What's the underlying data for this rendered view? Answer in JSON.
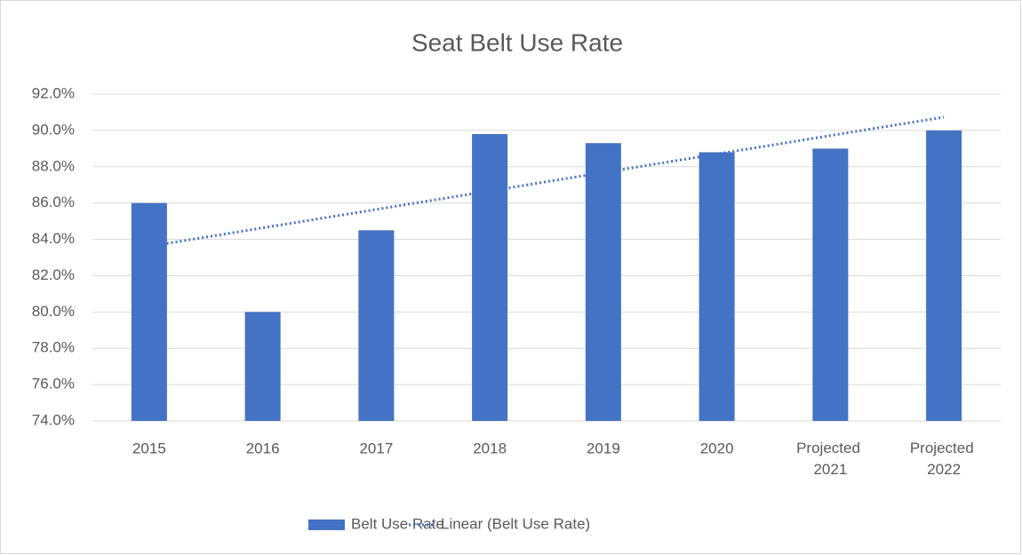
{
  "chart_data": {
    "type": "bar",
    "title": "Seat Belt Use Rate",
    "categories": [
      "2015",
      "2016",
      "2017",
      "2018",
      "2019",
      "2020",
      "Projected 2021",
      "Projected 2022"
    ],
    "series": [
      {
        "name": "Belt Use Rate",
        "color": "#4472c4",
        "values": [
          86.0,
          80.0,
          84.5,
          89.8,
          89.3,
          88.8,
          89.0,
          90.0
        ]
      }
    ],
    "trendline": {
      "name": "Linear (Belt Use Rate)",
      "type": "linear",
      "color": "#4472c4"
    },
    "ylim": [
      74,
      92
    ],
    "yticks": [
      {
        "value": 74,
        "label": "74.0%"
      },
      {
        "value": 76,
        "label": "76.0%"
      },
      {
        "value": 78,
        "label": "78.0%"
      },
      {
        "value": 80,
        "label": "80.0%"
      },
      {
        "value": 82,
        "label": "82.0%"
      },
      {
        "value": 84,
        "label": "84.0%"
      },
      {
        "value": 86,
        "label": "86.0%"
      },
      {
        "value": 88,
        "label": "88.0%"
      },
      {
        "value": 90,
        "label": "90.0%"
      },
      {
        "value": 92,
        "label": "92.0%"
      }
    ],
    "grid": true,
    "legend": "bottom"
  }
}
